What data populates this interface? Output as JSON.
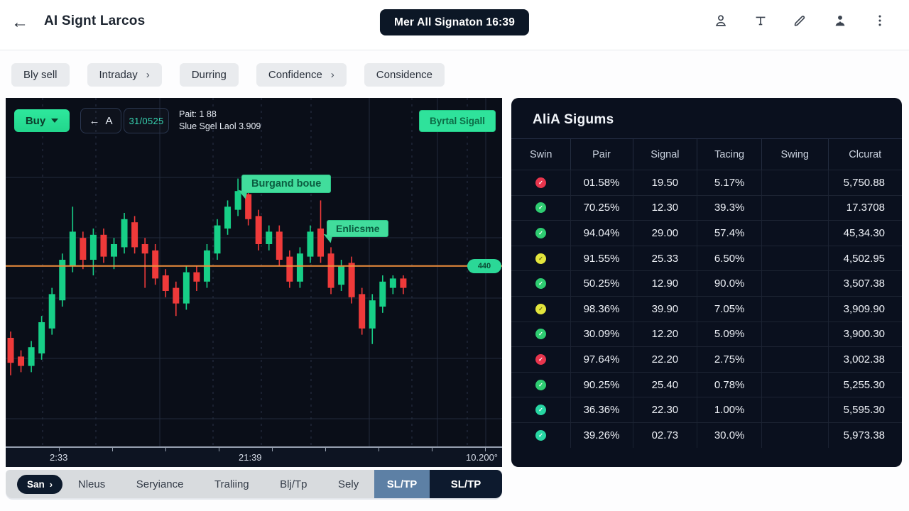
{
  "topbar": {
    "back": "←",
    "title": "AI Signt Larcos",
    "schedule_button": "Mer All Signaton 16:39",
    "icons": [
      "user",
      "text-tool",
      "pen",
      "avatar-filled",
      "more-vertical"
    ]
  },
  "filters": [
    {
      "label": "Bly sell",
      "arrow": false
    },
    {
      "label": "Intraday",
      "arrow": true
    },
    {
      "label": "Durring",
      "arrow": false
    },
    {
      "label": "Confidence",
      "arrow": true
    },
    {
      "label": "Considence",
      "arrow": false
    }
  ],
  "chart": {
    "buy_button": "Buy",
    "back_arrow": "←",
    "nav_letter": "A",
    "counter": "31/0525",
    "info_line1": "Pait: 1 88",
    "info_line2": "Slue Sgel Laol 3.909",
    "signal_button": "Byrtal Sigall",
    "annotations": [
      {
        "text": "Burgand boue"
      },
      {
        "text": "Enlicsme"
      }
    ],
    "price_tag": "440",
    "x_axis_labels": [
      "2:33",
      "21:39",
      "10.200°"
    ],
    "colors": {
      "up": "#17cf87",
      "down": "#ef3a3a",
      "line": "#ef8e3c",
      "tag_bg": "#2bd897"
    },
    "chart_data": {
      "type": "candlestick",
      "orange_line_value": 53,
      "value_range": [
        0,
        100
      ],
      "candles_ohlc": [
        [
          30,
          32,
          18,
          22
        ],
        [
          24,
          26,
          19,
          21
        ],
        [
          21,
          29,
          19,
          27
        ],
        [
          25,
          37,
          23,
          35
        ],
        [
          33,
          46,
          31,
          44
        ],
        [
          42,
          57,
          40,
          55
        ],
        [
          53,
          72,
          51,
          64
        ],
        [
          62,
          64,
          52,
          55
        ],
        [
          55,
          65,
          50,
          63
        ],
        [
          63,
          65,
          54,
          56
        ],
        [
          56,
          62,
          52,
          60
        ],
        [
          59,
          70,
          57,
          68
        ],
        [
          67,
          69,
          57,
          59
        ],
        [
          60,
          62,
          46,
          57
        ],
        [
          58,
          60,
          47,
          49
        ],
        [
          50,
          52,
          43,
          45
        ],
        [
          46,
          48,
          37,
          41
        ],
        [
          41,
          53,
          39,
          51
        ],
        [
          51,
          53,
          45,
          48
        ],
        [
          48,
          60,
          46,
          58
        ],
        [
          57,
          68,
          55,
          66
        ],
        [
          65,
          74,
          63,
          72
        ],
        [
          71,
          81,
          69,
          77
        ],
        [
          76,
          78,
          66,
          68
        ],
        [
          69,
          71,
          58,
          60
        ],
        [
          60,
          66,
          58,
          64
        ],
        [
          64,
          66,
          53,
          55
        ],
        [
          56,
          58,
          46,
          48
        ],
        [
          48,
          59,
          46,
          57
        ],
        [
          56,
          66,
          54,
          64
        ],
        [
          65,
          74,
          54,
          56
        ],
        [
          57,
          59,
          44,
          46
        ],
        [
          47,
          55,
          45,
          53
        ],
        [
          54,
          56,
          41,
          43
        ],
        [
          44,
          46,
          31,
          33
        ],
        [
          33,
          44,
          28,
          42
        ],
        [
          40,
          50,
          38,
          48
        ],
        [
          46,
          50,
          44,
          49
        ],
        [
          49,
          50,
          44,
          46
        ]
      ]
    }
  },
  "signals_panel": {
    "title": "AliA Sigums",
    "columns": [
      "Swin",
      "Pair",
      "Signal",
      "Tacing",
      "Swing",
      "Clcurat"
    ],
    "rows": [
      {
        "status": "red",
        "pair": "01.58%",
        "signal": "19.50",
        "tacing": "5.17%",
        "swing": "",
        "clcurat": "5,750.88"
      },
      {
        "status": "green",
        "pair": "70.25%",
        "signal": "12.30",
        "tacing": "39.3%",
        "swing": "",
        "clcurat": "17.3708"
      },
      {
        "status": "green",
        "pair": "94.04%",
        "signal": "29.00",
        "tacing": "57.4%",
        "swing": "",
        "clcurat": "45,34.30"
      },
      {
        "status": "yellow",
        "pair": "91.55%",
        "signal": "25.33",
        "tacing": "6.50%",
        "swing": "",
        "clcurat": "4,502.95"
      },
      {
        "status": "green",
        "pair": "50.25%",
        "signal": "12.90",
        "tacing": "90.0%",
        "swing": "",
        "clcurat": "3,507.38"
      },
      {
        "status": "yellow",
        "pair": "98.36%",
        "signal": "39.90",
        "tacing": "7.05%",
        "swing": "",
        "clcurat": "3,909.90"
      },
      {
        "status": "green",
        "pair": "30.09%",
        "signal": "12.20",
        "tacing": "5.09%",
        "swing": "",
        "clcurat": "3,900.30"
      },
      {
        "status": "red",
        "pair": "97.64%",
        "signal": "22.20",
        "tacing": "2.75%",
        "swing": "",
        "clcurat": "3,002.38"
      },
      {
        "status": "green",
        "pair": "90.25%",
        "signal": "25.40",
        "tacing": "0.78%",
        "swing": "",
        "clcurat": "5,255.30"
      },
      {
        "status": "teal",
        "pair": "36.36%",
        "signal": "22.30",
        "tacing": "1.00%",
        "swing": "",
        "clcurat": "5,595.30"
      },
      {
        "status": "teal",
        "pair": "39.26%",
        "signal": "02.73",
        "tacing": "30.0%",
        "swing": "",
        "clcurat": "5,973.38"
      }
    ]
  },
  "bottom_tabs": {
    "items": [
      {
        "label": "San",
        "arrow": true,
        "style": "pill"
      },
      {
        "label": "Nleus",
        "style": "plain"
      },
      {
        "label": "Seryiance",
        "style": "plain"
      },
      {
        "label": "Traliing",
        "style": "plain"
      },
      {
        "label": "Blj/Tp",
        "style": "plain"
      },
      {
        "label": "Sely",
        "style": "plain"
      },
      {
        "label": "SL/TP",
        "style": "slate"
      },
      {
        "label": "SL/TP",
        "style": "navy"
      }
    ]
  }
}
